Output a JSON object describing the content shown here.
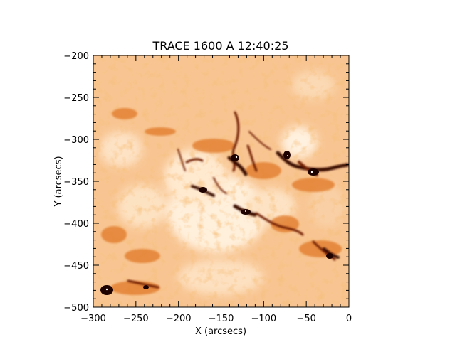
{
  "figure": {
    "title": "TRACE 1600 A 12:40:25",
    "xlabel": "X (arcsecs)",
    "ylabel": "Y (arcsecs)",
    "x_range": [
      -300,
      0
    ],
    "y_range": [
      -500,
      -200
    ],
    "x_ticks": [
      "−300",
      "−250",
      "−200",
      "−150",
      "−100",
      "−50",
      "0"
    ],
    "y_ticks": [
      "−200",
      "−250",
      "−300",
      "−350",
      "−400",
      "−450",
      "−500"
    ],
    "x_tick_values": [
      -300,
      -250,
      -200,
      -150,
      -100,
      -50,
      0
    ],
    "y_tick_values": [
      -200,
      -250,
      -300,
      -350,
      -400,
      -450,
      -500
    ],
    "colormap": {
      "background": "#f8c592",
      "bright": "#fff3e4",
      "mid": "#ec8a3a",
      "dark": "#6e1a05",
      "darkest": "#1e0200"
    }
  }
}
